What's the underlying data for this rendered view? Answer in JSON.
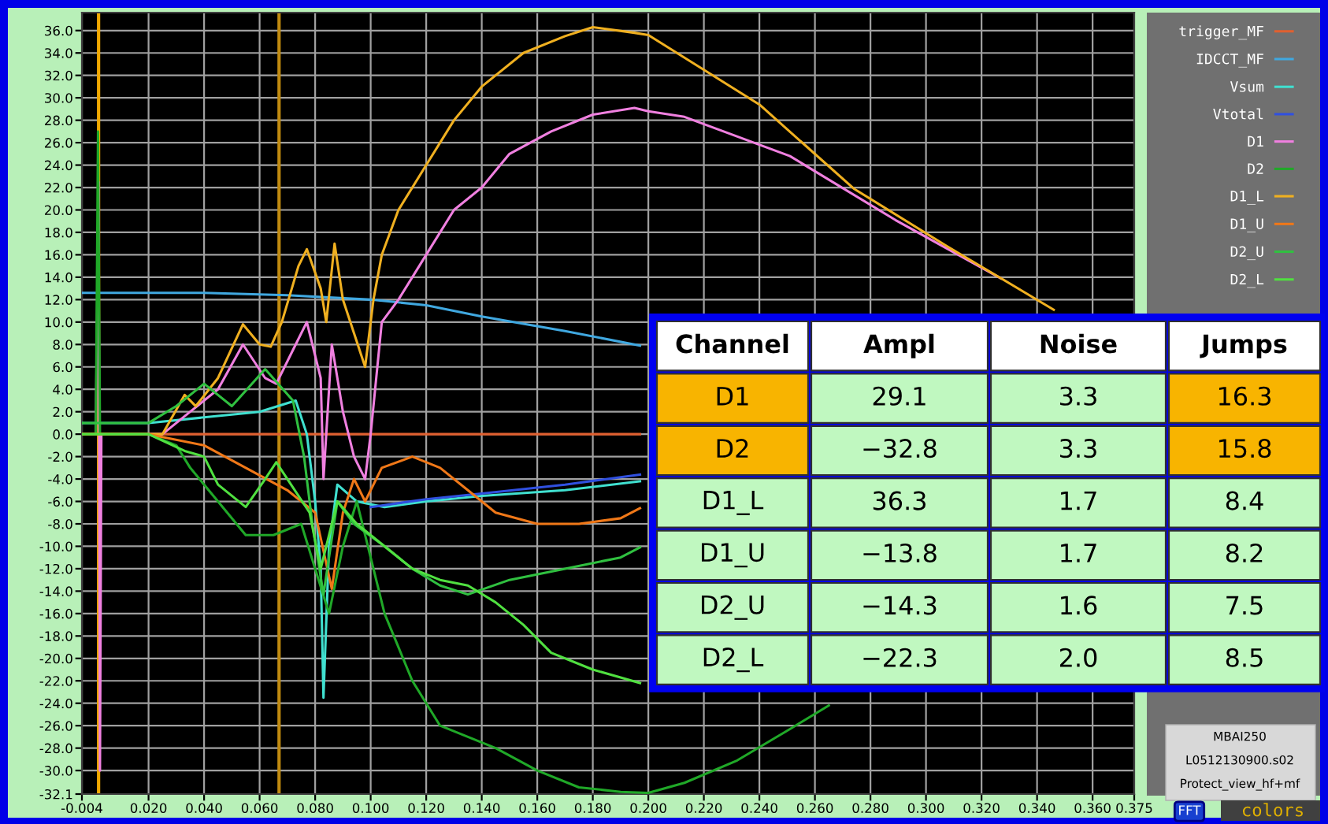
{
  "chart_data": {
    "type": "line",
    "xlim": [
      -0.004,
      0.375
    ],
    "ylim": [
      -32.1,
      37.6
    ],
    "xticks": [
      {
        "value": -0.004,
        "label": "-0.004"
      },
      {
        "value": 0.02,
        "label": "0.020"
      },
      {
        "value": 0.04,
        "label": "0.040"
      },
      {
        "value": 0.06,
        "label": "0.060"
      },
      {
        "value": 0.08,
        "label": "0.080"
      },
      {
        "value": 0.1,
        "label": "0.100"
      },
      {
        "value": 0.12,
        "label": "0.120"
      },
      {
        "value": 0.14,
        "label": "0.140"
      },
      {
        "value": 0.16,
        "label": "0.160"
      },
      {
        "value": 0.18,
        "label": "0.180"
      },
      {
        "value": 0.2,
        "label": "0.200"
      },
      {
        "value": 0.22,
        "label": "0.220"
      },
      {
        "value": 0.24,
        "label": "0.240"
      },
      {
        "value": 0.26,
        "label": "0.260"
      },
      {
        "value": 0.28,
        "label": "0.280"
      },
      {
        "value": 0.3,
        "label": "0.300"
      },
      {
        "value": 0.32,
        "label": "0.320"
      },
      {
        "value": 0.34,
        "label": "0.340"
      },
      {
        "value": 0.36,
        "label": "0.360"
      },
      {
        "value": 0.375,
        "label": "0.375"
      }
    ],
    "yticks": [
      {
        "value": 36,
        "label": "36.0"
      },
      {
        "value": 34,
        "label": "34.0"
      },
      {
        "value": 32,
        "label": "32.0"
      },
      {
        "value": 30,
        "label": "30.0"
      },
      {
        "value": 28,
        "label": "28.0"
      },
      {
        "value": 26,
        "label": "26.0"
      },
      {
        "value": 24,
        "label": "24.0"
      },
      {
        "value": 22,
        "label": "22.0"
      },
      {
        "value": 20,
        "label": "20.0"
      },
      {
        "value": 18,
        "label": "18.0"
      },
      {
        "value": 16,
        "label": "16.0"
      },
      {
        "value": 14,
        "label": "14.0"
      },
      {
        "value": 12,
        "label": "12.0"
      },
      {
        "value": 10,
        "label": "10.0"
      },
      {
        "value": 8,
        "label": "8.0"
      },
      {
        "value": 6,
        "label": "6.0"
      },
      {
        "value": 4,
        "label": "4.0"
      },
      {
        "value": 2,
        "label": "2.0"
      },
      {
        "value": 0,
        "label": "0.0"
      },
      {
        "value": -2,
        "label": "-2.0"
      },
      {
        "value": -4,
        "label": "-4.0"
      },
      {
        "value": -6,
        "label": "-6.0"
      },
      {
        "value": -8,
        "label": "-8.0"
      },
      {
        "value": -10,
        "label": "-10.0"
      },
      {
        "value": -12,
        "label": "-12.0"
      },
      {
        "value": -14,
        "label": "-14.0"
      },
      {
        "value": -16,
        "label": "-16.0"
      },
      {
        "value": -18,
        "label": "-18.0"
      },
      {
        "value": -20,
        "label": "-20.0"
      },
      {
        "value": -22,
        "label": "-22.0"
      },
      {
        "value": -24,
        "label": "-24.0"
      },
      {
        "value": -26,
        "label": "-26.0"
      },
      {
        "value": -28,
        "label": "-28.0"
      },
      {
        "value": -30,
        "label": "-30.0"
      },
      {
        "value": -32.1,
        "label": "-32.1"
      }
    ],
    "grid": true,
    "legend": "right",
    "ref_lines": [
      {
        "axis": "x",
        "value": 0.002,
        "color": "#f0a800"
      },
      {
        "axis": "x",
        "value": 0.067,
        "color": "#c08a10"
      }
    ],
    "series": [
      {
        "name": "trigger_MF",
        "color": "#e06030",
        "x": [
          -0.004,
          0.05,
          0.1,
          0.15,
          0.197
        ],
        "values": [
          0,
          0,
          0,
          0,
          0
        ]
      },
      {
        "name": "IDCCT_MF",
        "color": "#40a8e0",
        "x": [
          -0.004,
          0.04,
          0.07,
          0.1,
          0.12,
          0.14,
          0.17,
          0.197
        ],
        "values": [
          12.6,
          12.6,
          12.4,
          12,
          11.5,
          10.5,
          9.2,
          7.9
        ]
      },
      {
        "name": "Vsum",
        "color": "#40e0d0",
        "x": [
          -0.004,
          0.02,
          0.04,
          0.06,
          0.073,
          0.077,
          0.08,
          0.082,
          0.083,
          0.085,
          0.088,
          0.095,
          0.105,
          0.12,
          0.14,
          0.17,
          0.197
        ],
        "values": [
          1,
          1,
          1.5,
          2,
          3,
          0,
          -6,
          -12,
          -23.5,
          -10,
          -4.5,
          -6,
          -6.5,
          -6,
          -5.5,
          -5,
          -4.2
        ]
      },
      {
        "name": "Vtotal",
        "color": "#3050e0",
        "x": [
          0.1,
          0.12,
          0.14,
          0.17,
          0.197
        ],
        "values": [
          -6.5,
          -5.8,
          -5.3,
          -4.5,
          -3.6
        ]
      },
      {
        "name": "D1",
        "color": "#f080e0",
        "x": [
          -0.004,
          0.001,
          0.002,
          0.0025,
          0.003,
          0.025,
          0.035,
          0.045,
          0.054,
          0.062,
          0.066,
          0.073,
          0.077,
          0.082,
          0.083,
          0.086,
          0.09,
          0.094,
          0.098,
          0.1,
          0.104,
          0.11,
          0.12,
          0.13,
          0.14,
          0.15,
          0.165,
          0.18,
          0.195,
          0.2,
          0.213,
          0.251,
          0.289,
          0.327
        ],
        "values": [
          0,
          0,
          22.5,
          -30,
          0,
          0,
          2,
          4,
          8,
          5,
          4.5,
          8,
          10,
          5,
          -4,
          8,
          2,
          -2,
          -4,
          0,
          10,
          12,
          16,
          20,
          22,
          25,
          27,
          28.5,
          29.1,
          28.8,
          28.3,
          24.8,
          19.1,
          13.9
        ]
      },
      {
        "name": "D2",
        "color": "#20a828",
        "x": [
          -0.004,
          0.001,
          0.0018,
          0.0025,
          0.02,
          0.03,
          0.035,
          0.045,
          0.055,
          0.065,
          0.075,
          0.08,
          0.085,
          0.09,
          0.095,
          0.105,
          0.115,
          0.125,
          0.135,
          0.145,
          0.16,
          0.175,
          0.19,
          0.2,
          0.213,
          0.232,
          0.251,
          0.265
        ],
        "values": [
          0,
          0,
          27,
          0,
          0,
          -1,
          -3,
          -6,
          -9,
          -9,
          -8,
          -12,
          -16,
          -10,
          -6,
          -16,
          -22,
          -26,
          -27,
          -28,
          -30,
          -31.5,
          -31.9,
          -32.0,
          -31.1,
          -29.1,
          -26.3,
          -24.2
        ]
      },
      {
        "name": "D1_L",
        "color": "#f0b020",
        "x": [
          -0.004,
          0.025,
          0.033,
          0.037,
          0.045,
          0.054,
          0.06,
          0.064,
          0.068,
          0.074,
          0.077,
          0.082,
          0.084,
          0.087,
          0.09,
          0.094,
          0.098,
          0.101,
          0.104,
          0.11,
          0.12,
          0.13,
          0.14,
          0.155,
          0.17,
          0.18,
          0.195,
          0.2,
          0.24,
          0.274,
          0.308,
          0.346
        ],
        "values": [
          0,
          0,
          3.5,
          2.5,
          5,
          9.8,
          8,
          7.8,
          10,
          15,
          16.5,
          13,
          10,
          17,
          12,
          9,
          6,
          12,
          16,
          20,
          24,
          28,
          31,
          34,
          35.5,
          36.3,
          35.8,
          35.6,
          29.4,
          21.9,
          16.7,
          11.1
        ]
      },
      {
        "name": "D1_U",
        "color": "#f07818",
        "x": [
          -0.004,
          0.02,
          0.04,
          0.055,
          0.07,
          0.08,
          0.086,
          0.09,
          0.094,
          0.098,
          0.104,
          0.115,
          0.125,
          0.135,
          0.145,
          0.16,
          0.175,
          0.19,
          0.197
        ],
        "values": [
          0,
          0,
          -1,
          -3,
          -5,
          -7,
          -13.8,
          -7,
          -4,
          -6,
          -3,
          -2,
          -3,
          -5,
          -7,
          -8,
          -8,
          -7.5,
          -6.6
        ]
      },
      {
        "name": "D2_U",
        "color": "#30c040",
        "x": [
          -0.004,
          0.02,
          0.03,
          0.04,
          0.05,
          0.062,
          0.072,
          0.076,
          0.079,
          0.083,
          0.088,
          0.094,
          0.105,
          0.115,
          0.125,
          0.135,
          0.15,
          0.17,
          0.19,
          0.197
        ],
        "values": [
          1,
          1,
          2.5,
          4.5,
          2.5,
          5.8,
          3,
          -2,
          -8,
          -14.3,
          -6,
          -8,
          -10,
          -12,
          -13.5,
          -14.3,
          -13,
          -12,
          -11,
          -10.1
        ]
      },
      {
        "name": "D2_L",
        "color": "#50e040",
        "x": [
          -0.004,
          0.02,
          0.033,
          0.04,
          0.045,
          0.055,
          0.062,
          0.066,
          0.07,
          0.078,
          0.082,
          0.088,
          0.095,
          0.105,
          0.115,
          0.125,
          0.135,
          0.145,
          0.155,
          0.165,
          0.18,
          0.19,
          0.197
        ],
        "values": [
          0,
          0,
          -1.5,
          -2,
          -4.5,
          -6.5,
          -4,
          -2.5,
          -4,
          -7,
          -12,
          -6,
          -8,
          -10,
          -12,
          -13,
          -13.5,
          -15,
          -17,
          -19.5,
          -21,
          -21.7,
          -22.2
        ]
      }
    ],
    "annotations": [
      "Channel",
      "Ampl",
      "Noise",
      "Jumps",
      "D1",
      "29.1",
      "3.3",
      "16.3",
      "D2",
      "−32.8",
      "3.3",
      "15.8",
      "D1_L",
      "36.3",
      "1.7",
      "8.4",
      "D1_U",
      "−13.8",
      "1.7",
      "8.2",
      "D2_U",
      "−14.3",
      "1.6",
      "7.5",
      "D2_L",
      "−22.3",
      "2.0",
      "8.5",
      "MBAI250",
      "L0512130900.s02",
      "Protect_view_hf+mf",
      "FFT",
      "colors"
    ]
  }
}
